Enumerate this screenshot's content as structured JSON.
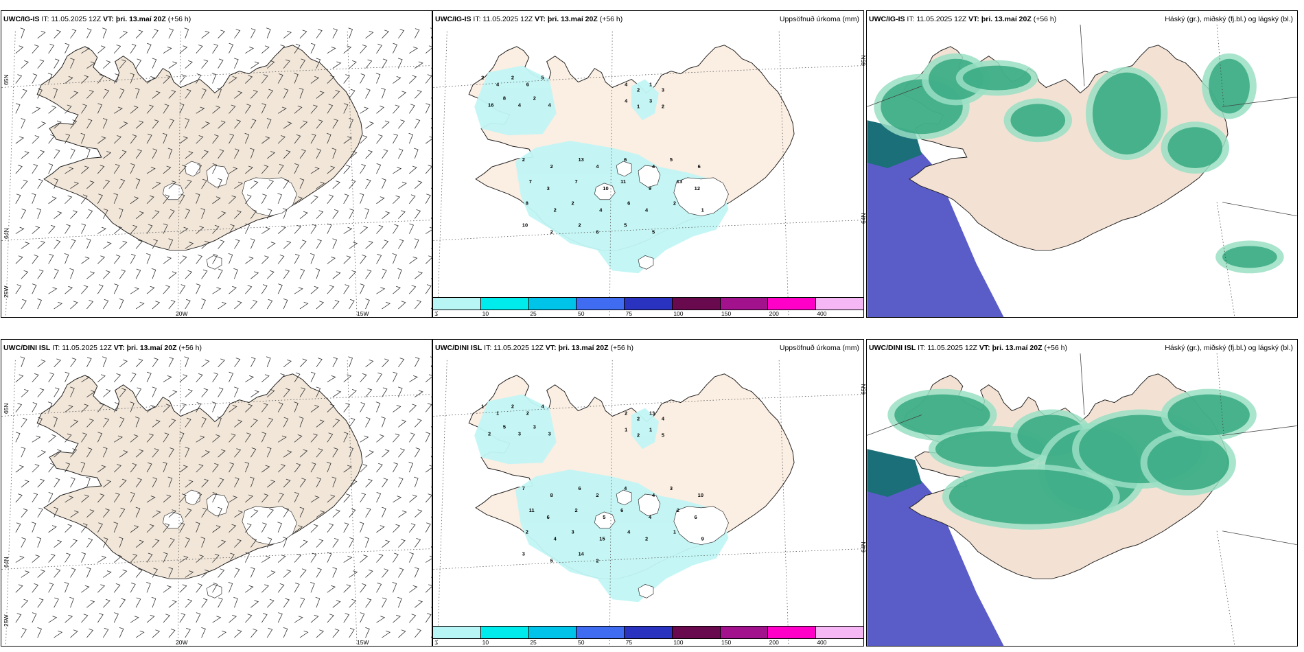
{
  "panels": [
    {
      "id": "r1c1",
      "type": "wind",
      "model": "UWC/IG-IS",
      "it_label": "IT:",
      "it_value": "11.05.2025 12Z",
      "vt_label": "VT:",
      "vt_value": "þri. 13.maí 20Z",
      "lead": "(+56 h)",
      "lat_labels": [
        "65N",
        "64N"
      ],
      "lon_labels": [
        "25W",
        "20W",
        "15W"
      ]
    },
    {
      "id": "r1c2",
      "type": "precip",
      "model": "UWC/IG-IS",
      "it_label": "IT:",
      "it_value": "11.05.2025 12Z",
      "vt_label": "VT:",
      "vt_value": "þri. 13.maí 20Z",
      "lead": "(+56 h)",
      "right_title": "Uppsöfnuð úrkoma (mm)",
      "lat_labels": [
        "65N",
        "64N"
      ],
      "precip_numbers": [
        "2",
        "4",
        "2",
        "6",
        "5",
        "16",
        "8",
        "4",
        "2",
        "4",
        "1",
        "3",
        "4",
        "2",
        "3",
        "2",
        "4",
        "1",
        "2",
        "2",
        "13",
        "4",
        "6",
        "4",
        "5",
        "6",
        "7",
        "3",
        "7",
        "10",
        "11",
        "9",
        "13",
        "12",
        "8",
        "2",
        "2",
        "4",
        "6",
        "4",
        "2",
        "1",
        "10",
        "2",
        "2",
        "6",
        "5",
        "5"
      ]
    },
    {
      "id": "r1c3",
      "type": "cloud",
      "model": "UWC/IG-IS",
      "it_label": "IT:",
      "it_value": "11.05.2025 12Z",
      "vt_label": "VT:",
      "vt_value": "þri. 13.maí 20Z",
      "lead": "(+56 h)",
      "right_title": "Háský (gr.), miðský (fj.bl.) og lágský (bl.)"
    },
    {
      "id": "r2c1",
      "type": "wind",
      "model": "UWC/DINI ISL",
      "it_label": "IT:",
      "it_value": "11.05.2025 12Z",
      "vt_label": "VT:",
      "vt_value": "þri. 13.maí 20Z",
      "lead": "(+56 h)",
      "lat_labels": [
        "65N",
        "64N"
      ],
      "lon_labels": [
        "25W",
        "20W",
        "15W"
      ]
    },
    {
      "id": "r2c2",
      "type": "precip",
      "model": "UWC/DINI ISL",
      "it_label": "IT:",
      "it_value": "11.05.2025 12Z",
      "vt_label": "VT:",
      "vt_value": "þri. 13.maí 20Z",
      "lead": "(+56 h)",
      "right_title": "Uppsöfnuð úrkoma (mm)",
      "lat_labels": [
        "65N",
        "64N"
      ],
      "precip_numbers": [
        "1",
        "1",
        "2",
        "2",
        "4",
        "2",
        "5",
        "3",
        "3",
        "3",
        "13",
        "4",
        "2",
        "2",
        "1",
        "5",
        "1",
        "2",
        "7",
        "8",
        "6",
        "2",
        "4",
        "4",
        "3",
        "10",
        "11",
        "6",
        "2",
        "5",
        "6",
        "4",
        "2",
        "6",
        "2",
        "4",
        "3",
        "15",
        "4",
        "2",
        "1",
        "9",
        "3",
        "5",
        "14",
        "2"
      ]
    },
    {
      "id": "r2c3",
      "type": "cloud",
      "model": "UWC/DINI ISL",
      "it_label": "IT:",
      "it_value": "11.05.2025 12Z",
      "vt_label": "VT:",
      "vt_value": "þri. 13.maí 20Z",
      "lead": "(+56 h)",
      "right_title": "Háský (gr.), miðský (fj.bl.) og lágský (bl.)"
    }
  ],
  "colorbar": {
    "labels": [
      "1",
      "10",
      "25",
      "50",
      "75",
      "100",
      "150",
      "200",
      "400"
    ],
    "colors": [
      "#b8f5f5",
      "#00ecec",
      "#00c3ea",
      "#3f6cf0",
      "#2a33c0",
      "#6a0a4e",
      "#a2128c",
      "#ff00c8",
      "#f5b8f5"
    ]
  },
  "colors": {
    "land_wind": "#f1e6d8",
    "land_precip": "#fbeee2",
    "land_cloud": "#f3e2d4",
    "precip_light": "#c2f6f6",
    "cloud_green": "#2ea57c",
    "cloud_light": "#9adfc4",
    "cloud_blue": "#5a5cc8",
    "cloud_teal": "#1a6f78"
  }
}
